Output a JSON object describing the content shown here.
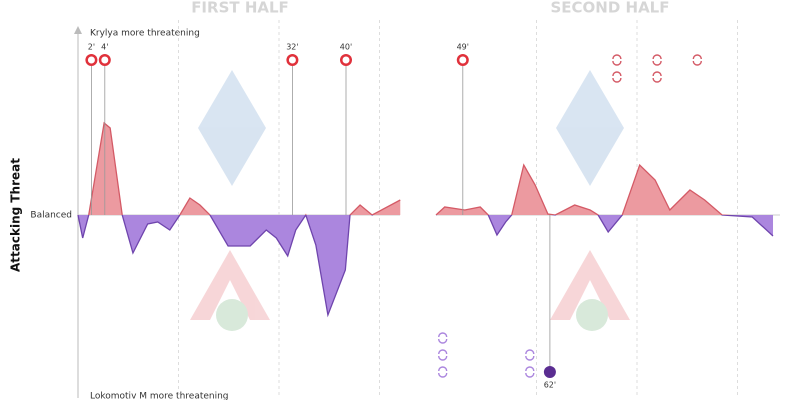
{
  "chart_data": {
    "type": "momentum",
    "y_axis_label": "Attacking Threat",
    "top_label": "Krylya more threatening",
    "bottom_label": "Lokomotiv M more threatening",
    "baseline_label": "Balanced",
    "ylim": [
      -180,
      180
    ],
    "colors": {
      "home_fill": "#ec9aa0",
      "home_line": "#d45a66",
      "away_fill": "#ab86de",
      "away_line": "#6f45ad"
    },
    "halves": [
      {
        "title": "FIRST HALF",
        "start": 0,
        "xgrid": [
          15,
          30,
          45
        ],
        "x": [
          0,
          0.7,
          1.6,
          3.9,
          4.8,
          6.6,
          8.2,
          10.4,
          11.9,
          13.7,
          15.2,
          16.7,
          18.2,
          19.7,
          22.4,
          25.7,
          28.1,
          29.6,
          31.3,
          32.5,
          34,
          35.5,
          37.3,
          39.9,
          40.6,
          42.1,
          43.9,
          48.1
        ],
        "values": [
          0,
          -23,
          0,
          92,
          87,
          0,
          -38,
          -9,
          -7,
          -15,
          0,
          17,
          10,
          0,
          -31,
          -31,
          -15,
          -23,
          -41,
          -15,
          0,
          -30,
          -100,
          -55,
          0,
          10,
          0,
          15
        ],
        "home_goals": [
          {
            "minute": 2,
            "label": "2'"
          },
          {
            "minute": 4,
            "label": "4'"
          },
          {
            "minute": 32,
            "label": "32'"
          },
          {
            "minute": 40,
            "label": "40'"
          }
        ],
        "away_goals": [],
        "home_subs": [],
        "away_subs": []
      },
      {
        "title": "SECOND HALF",
        "start": 45,
        "xgrid": [
          60,
          75,
          90
        ],
        "x": [
          45,
          46.3,
          49.3,
          51.6,
          52.8,
          54.1,
          55.4,
          56.3,
          58.1,
          59.8,
          61.7,
          62.8,
          65.7,
          68,
          69.2,
          70.7,
          72.8,
          75.4,
          77.7,
          79.9,
          82.9,
          85.1,
          87.7,
          92.2,
          95.3
        ],
        "values": [
          0,
          8,
          5,
          8,
          0,
          -20,
          -7,
          0,
          50,
          30,
          1,
          0,
          10,
          5,
          0,
          -17,
          0,
          50,
          35,
          5,
          25,
          15,
          0,
          -2,
          -21
        ],
        "home_goals": [
          {
            "minute": 49,
            "label": "49'"
          }
        ],
        "away_goals": [
          {
            "minute": 62,
            "label": "62'"
          }
        ],
        "home_subs": [
          72,
          72,
          78,
          78,
          84
        ],
        "away_subs": [
          46,
          46,
          46,
          59,
          59
        ]
      }
    ]
  }
}
